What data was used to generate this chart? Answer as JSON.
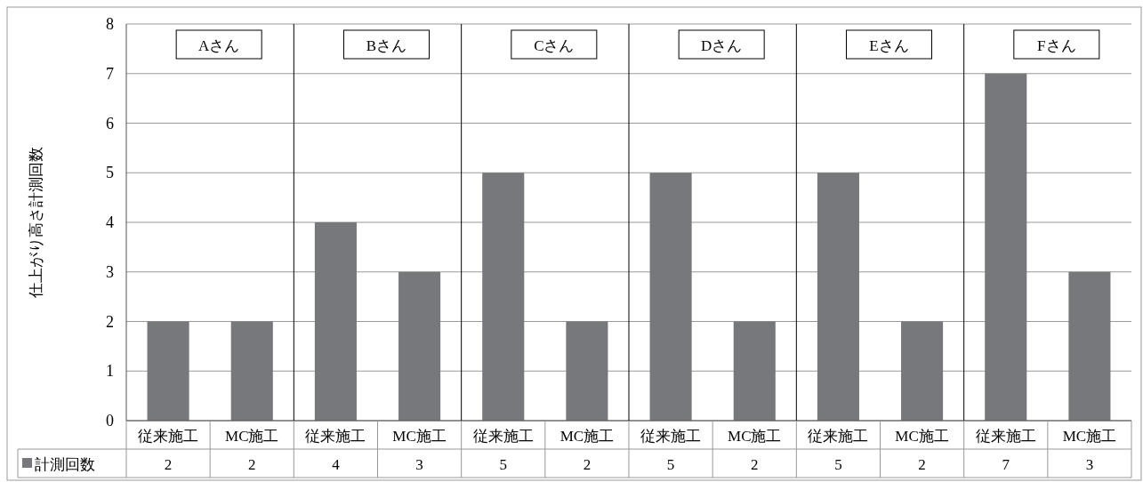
{
  "chart_data": {
    "type": "bar",
    "categories": [
      "従来施工",
      "MC施工",
      "従来施工",
      "MC施工",
      "従来施工",
      "MC施工",
      "従来施工",
      "MC施工",
      "従来施工",
      "MC施工",
      "従来施工",
      "MC施工"
    ],
    "series": [
      {
        "name": "計測回数",
        "color": "#77787b",
        "values": [
          2,
          2,
          4,
          3,
          5,
          2,
          5,
          2,
          5,
          2,
          7,
          3
        ]
      }
    ],
    "ylabel": "仕上がり高さ計測回数",
    "annotations": [
      "Aさん",
      "Bさん",
      "Cさん",
      "Dさん",
      "Eさん",
      "Fさん"
    ],
    "ylim": [
      0,
      8
    ],
    "yticks": [
      0,
      1,
      2,
      3,
      4,
      5,
      6,
      7,
      8
    ],
    "grid": "y",
    "legend": "bottom",
    "data_labels": true
  }
}
